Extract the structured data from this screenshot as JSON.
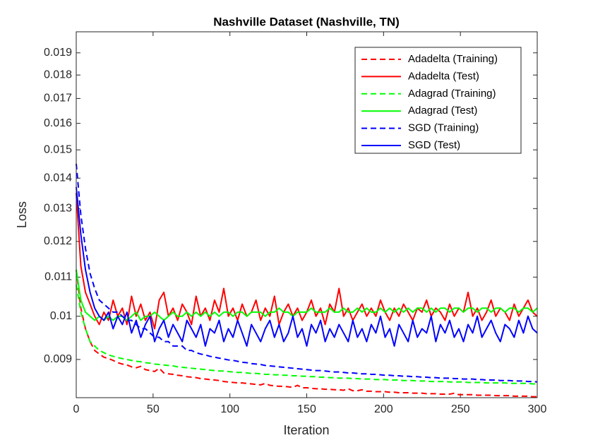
{
  "chart_data": {
    "type": "line",
    "title": "Nashville Dataset (Nashville, TN)",
    "xlabel": "Iteration",
    "ylabel": "Loss",
    "yscale": "log",
    "grid": false,
    "legend": "northeast",
    "xlim": [
      0,
      300
    ],
    "xticks": [
      0,
      50,
      100,
      150,
      200,
      250,
      300
    ],
    "ylim": [
      0.0082,
      0.02
    ],
    "yticks": [
      0.009,
      0.01,
      0.011,
      0.012,
      0.013,
      0.014,
      0.015,
      0.016,
      0.017,
      0.018,
      0.019
    ],
    "x": [
      0,
      3,
      6,
      9,
      12,
      15,
      18,
      21,
      24,
      27,
      30,
      33,
      36,
      39,
      42,
      45,
      48,
      51,
      54,
      57,
      60,
      63,
      66,
      69,
      72,
      75,
      78,
      81,
      84,
      87,
      90,
      93,
      96,
      99,
      102,
      105,
      108,
      111,
      114,
      117,
      120,
      123,
      126,
      129,
      132,
      135,
      138,
      141,
      144,
      147,
      150,
      153,
      156,
      159,
      162,
      165,
      168,
      171,
      174,
      177,
      180,
      183,
      186,
      189,
      192,
      195,
      198,
      201,
      204,
      207,
      210,
      213,
      216,
      219,
      222,
      225,
      228,
      231,
      234,
      237,
      240,
      243,
      246,
      249,
      252,
      255,
      258,
      261,
      264,
      267,
      270,
      273,
      276,
      279,
      282,
      285,
      288,
      291,
      294,
      297,
      300
    ],
    "series": [
      {
        "name": "Adadelta (Training)",
        "color": "#ff0000",
        "style": "dashed",
        "values": [
          0.0112,
          0.0102,
          0.0097,
          0.0094,
          0.0092,
          0.00912,
          0.00905,
          0.00902,
          0.00898,
          0.00893,
          0.0089,
          0.00888,
          0.00884,
          0.00882,
          0.00885,
          0.00878,
          0.00876,
          0.00874,
          0.00881,
          0.00871,
          0.00869,
          0.00868,
          0.00866,
          0.00865,
          0.00863,
          0.00862,
          0.00861,
          0.00859,
          0.00858,
          0.00857,
          0.00856,
          0.00855,
          0.00853,
          0.00852,
          0.00851,
          0.0085,
          0.0085,
          0.00849,
          0.00848,
          0.00847,
          0.00846,
          0.00849,
          0.00845,
          0.00844,
          0.00843,
          0.00843,
          0.00842,
          0.00841,
          0.00845,
          0.0084,
          0.0084,
          0.00839,
          0.00838,
          0.00838,
          0.00837,
          0.00837,
          0.00836,
          0.00836,
          0.00835,
          0.00838,
          0.00834,
          0.00834,
          0.00836,
          0.00833,
          0.00833,
          0.00832,
          0.00832,
          0.00832,
          0.00831,
          0.00831,
          0.0083,
          0.0083,
          0.0083,
          0.00829,
          0.00829,
          0.00829,
          0.00828,
          0.00828,
          0.00828,
          0.00827,
          0.00827,
          0.00827,
          0.00829,
          0.00826,
          0.00826,
          0.00826,
          0.00826,
          0.00825,
          0.00825,
          0.00825,
          0.00825,
          0.00824,
          0.00824,
          0.00824,
          0.00824,
          0.00823,
          0.00823,
          0.00823,
          0.00823,
          0.00822,
          0.00822
        ]
      },
      {
        "name": "Adadelta (Test)",
        "color": "#ff0000",
        "style": "solid",
        "values": [
          0.0135,
          0.0113,
          0.0106,
          0.0103,
          0.01,
          0.0098,
          0.0101,
          0.0099,
          0.0104,
          0.01,
          0.0102,
          0.0098,
          0.0105,
          0.01,
          0.0103,
          0.0099,
          0.0101,
          0.0097,
          0.0104,
          0.0106,
          0.01,
          0.0102,
          0.0099,
          0.0103,
          0.0101,
          0.0098,
          0.0105,
          0.01,
          0.0102,
          0.0099,
          0.0104,
          0.0101,
          0.0107,
          0.01,
          0.0102,
          0.0099,
          0.0103,
          0.01,
          0.0101,
          0.0104,
          0.0099,
          0.0102,
          0.01,
          0.0105,
          0.0098,
          0.0101,
          0.0103,
          0.01,
          0.0102,
          0.0099,
          0.0101,
          0.0104,
          0.01,
          0.0102,
          0.0098,
          0.0103,
          0.0101,
          0.0107,
          0.01,
          0.0102,
          0.0099,
          0.0101,
          0.0103,
          0.01,
          0.0102,
          0.01,
          0.0104,
          0.0101,
          0.0099,
          0.0102,
          0.01,
          0.0103,
          0.0101,
          0.0099,
          0.0102,
          0.0101,
          0.0104,
          0.01,
          0.0102,
          0.0101,
          0.0099,
          0.0103,
          0.01,
          0.0102,
          0.0101,
          0.0106,
          0.01,
          0.0102,
          0.0099,
          0.0101,
          0.0104,
          0.01,
          0.0102,
          0.0101,
          0.0099,
          0.0103,
          0.01,
          0.0102,
          0.0104,
          0.0101,
          0.01
        ]
      },
      {
        "name": "Adagrad (Training)",
        "color": "#00ff00",
        "style": "dashed",
        "values": [
          0.0108,
          0.0101,
          0.0097,
          0.0094,
          0.0093,
          0.0092,
          0.00915,
          0.0091,
          0.00907,
          0.00904,
          0.00902,
          0.009,
          0.00898,
          0.00896,
          0.00895,
          0.00893,
          0.00892,
          0.0089,
          0.00889,
          0.00888,
          0.00887,
          0.00886,
          0.00884,
          0.00883,
          0.00882,
          0.00881,
          0.0088,
          0.00879,
          0.00878,
          0.00877,
          0.00876,
          0.00875,
          0.00875,
          0.00874,
          0.00873,
          0.00872,
          0.00872,
          0.00871,
          0.0087,
          0.0087,
          0.00869,
          0.00868,
          0.00868,
          0.00867,
          0.00867,
          0.00866,
          0.00866,
          0.00865,
          0.00865,
          0.00864,
          0.00864,
          0.00863,
          0.00863,
          0.00862,
          0.00862,
          0.00861,
          0.00861,
          0.0086,
          0.0086,
          0.0086,
          0.00859,
          0.00859,
          0.00858,
          0.00858,
          0.00858,
          0.00857,
          0.00857,
          0.00857,
          0.00856,
          0.00856,
          0.00856,
          0.00855,
          0.00855,
          0.00855,
          0.00854,
          0.00854,
          0.00854,
          0.00853,
          0.00853,
          0.00853,
          0.00853,
          0.00852,
          0.00852,
          0.00852,
          0.00852,
          0.00851,
          0.00851,
          0.00851,
          0.00851,
          0.0085,
          0.0085,
          0.0085,
          0.0085,
          0.0085,
          0.00849,
          0.00849,
          0.00849,
          0.00849,
          0.00849,
          0.00848,
          0.00848
        ]
      },
      {
        "name": "Adagrad (Test)",
        "color": "#00ff00",
        "style": "solid",
        "values": [
          0.0112,
          0.0104,
          0.0101,
          0.01,
          0.0099,
          0.01,
          0.0099,
          0.01,
          0.0099,
          0.01,
          0.01,
          0.0099,
          0.01,
          0.0101,
          0.0099,
          0.01,
          0.01,
          0.0101,
          0.01,
          0.0099,
          0.01,
          0.0101,
          0.01,
          0.01,
          0.0101,
          0.01,
          0.0101,
          0.01,
          0.0101,
          0.01,
          0.0101,
          0.01,
          0.0101,
          0.0101,
          0.01,
          0.0101,
          0.0101,
          0.01,
          0.0101,
          0.0101,
          0.0101,
          0.01,
          0.0101,
          0.0101,
          0.0102,
          0.0101,
          0.0101,
          0.01,
          0.0101,
          0.0101,
          0.0101,
          0.0102,
          0.0101,
          0.0101,
          0.0101,
          0.0102,
          0.0101,
          0.0101,
          0.0102,
          0.0101,
          0.0101,
          0.0102,
          0.0101,
          0.0102,
          0.0101,
          0.0101,
          0.0102,
          0.0101,
          0.0102,
          0.0101,
          0.0102,
          0.0101,
          0.0102,
          0.0101,
          0.0102,
          0.0102,
          0.0101,
          0.0102,
          0.0101,
          0.0102,
          0.0102,
          0.0101,
          0.0102,
          0.0102,
          0.0101,
          0.0102,
          0.0102,
          0.0101,
          0.0102,
          0.0102,
          0.0101,
          0.0102,
          0.0102,
          0.0101,
          0.0102,
          0.0102,
          0.0101,
          0.0102,
          0.0102,
          0.0101,
          0.0102
        ]
      },
      {
        "name": "SGD (Training)",
        "color": "#0000ff",
        "style": "dashed",
        "values": [
          0.0145,
          0.0128,
          0.0118,
          0.0111,
          0.0107,
          0.0104,
          0.0103,
          0.0102,
          0.0101,
          0.0101,
          0.01,
          0.0099,
          0.0099,
          0.0098,
          0.0097,
          0.0097,
          0.0096,
          0.0095,
          0.0095,
          0.0094,
          0.0094,
          0.0093,
          0.0093,
          0.0093,
          0.0092,
          0.0092,
          0.00915,
          0.00912,
          0.0091,
          0.00907,
          0.00905,
          0.00903,
          0.00901,
          0.00899,
          0.00898,
          0.00896,
          0.00894,
          0.00893,
          0.00891,
          0.0089,
          0.00889,
          0.00887,
          0.00886,
          0.00885,
          0.00884,
          0.00883,
          0.00882,
          0.00881,
          0.0088,
          0.00879,
          0.00878,
          0.00877,
          0.00876,
          0.00876,
          0.00875,
          0.00874,
          0.00873,
          0.00873,
          0.00872,
          0.00871,
          0.00871,
          0.0087,
          0.00869,
          0.00869,
          0.00868,
          0.00868,
          0.00867,
          0.00866,
          0.00866,
          0.00865,
          0.00865,
          0.00864,
          0.00864,
          0.00863,
          0.00863,
          0.00862,
          0.00862,
          0.00861,
          0.00861,
          0.0086,
          0.0086,
          0.0086,
          0.00859,
          0.00859,
          0.00858,
          0.00858,
          0.00858,
          0.00857,
          0.00857,
          0.00856,
          0.00856,
          0.00856,
          0.00855,
          0.00855,
          0.00855,
          0.00854,
          0.00854,
          0.00854,
          0.00853,
          0.00853,
          0.00852
        ]
      },
      {
        "name": "SGD (Test)",
        "color": "#0000ff",
        "style": "solid",
        "values": [
          0.0137,
          0.0122,
          0.0112,
          0.0106,
          0.0102,
          0.01,
          0.0099,
          0.0101,
          0.0097,
          0.01,
          0.0098,
          0.0101,
          0.0096,
          0.0099,
          0.0095,
          0.0098,
          0.01,
          0.0094,
          0.0097,
          0.0099,
          0.0095,
          0.0098,
          0.0096,
          0.0094,
          0.0099,
          0.0097,
          0.0095,
          0.0098,
          0.0093,
          0.0097,
          0.0096,
          0.0099,
          0.0094,
          0.0097,
          0.0095,
          0.0099,
          0.0096,
          0.0093,
          0.0098,
          0.0096,
          0.0094,
          0.0097,
          0.0099,
          0.0095,
          0.0098,
          0.0094,
          0.0096,
          0.01,
          0.0095,
          0.0097,
          0.0093,
          0.0098,
          0.0096,
          0.0099,
          0.0094,
          0.0097,
          0.0095,
          0.0098,
          0.0096,
          0.0094,
          0.0099,
          0.0095,
          0.0097,
          0.0094,
          0.0098,
          0.0096,
          0.01,
          0.0095,
          0.0097,
          0.0093,
          0.0098,
          0.0096,
          0.0094,
          0.0099,
          0.0095,
          0.0097,
          0.0096,
          0.01,
          0.0094,
          0.0098,
          0.0096,
          0.0099,
          0.0095,
          0.0097,
          0.0094,
          0.0098,
          0.0096,
          0.01,
          0.0095,
          0.0097,
          0.0099,
          0.0096,
          0.0094,
          0.0098,
          0.0097,
          0.0095,
          0.0099,
          0.0096,
          0.01,
          0.0097,
          0.0096
        ]
      }
    ]
  }
}
